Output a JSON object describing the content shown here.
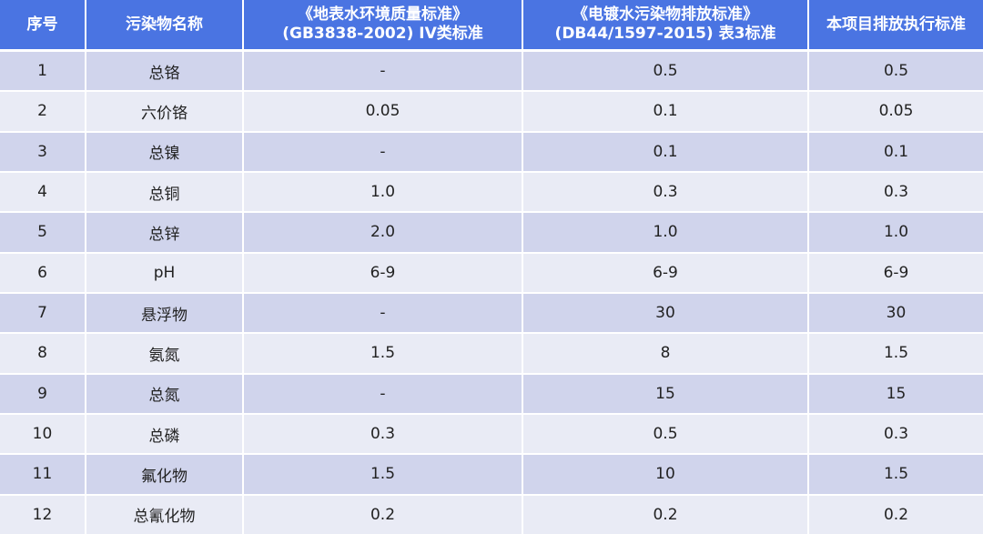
{
  "table": {
    "headers": {
      "col1": "序号",
      "col2": "污染物名称",
      "col3_line1": "《地表水环境质量标准》",
      "col3_line2": "(GB3838-2002) IV类标准",
      "col4_line1": "《电镀水污染物排放标准》",
      "col4_line2": "(DB44/1597-2015) 表3标准",
      "col5": "本项目排放执行标准"
    },
    "rows": [
      {
        "no": "1",
        "name": "总铬",
        "surface": "-",
        "plating": "0.5",
        "project": "0.5"
      },
      {
        "no": "2",
        "name": "六价铬",
        "surface": "0.05",
        "plating": "0.1",
        "project": "0.05"
      },
      {
        "no": "3",
        "name": "总镍",
        "surface": "-",
        "plating": "0.1",
        "project": "0.1"
      },
      {
        "no": "4",
        "name": "总铜",
        "surface": "1.0",
        "plating": "0.3",
        "project": "0.3"
      },
      {
        "no": "5",
        "name": "总锌",
        "surface": "2.0",
        "plating": "1.0",
        "project": "1.0"
      },
      {
        "no": "6",
        "name": "pH",
        "surface": "6-9",
        "plating": "6-9",
        "project": "6-9"
      },
      {
        "no": "7",
        "name": "悬浮物",
        "surface": "-",
        "plating": "30",
        "project": "30"
      },
      {
        "no": "8",
        "name": "氨氮",
        "surface": "1.5",
        "plating": "8",
        "project": "1.5"
      },
      {
        "no": "9",
        "name": "总氮",
        "surface": "-",
        "plating": "15",
        "project": "15"
      },
      {
        "no": "10",
        "name": "总磷",
        "surface": "0.3",
        "plating": "0.5",
        "project": "0.3"
      },
      {
        "no": "11",
        "name": "氟化物",
        "surface": "1.5",
        "plating": "10",
        "project": "1.5"
      },
      {
        "no": "12",
        "name": "总氰化物",
        "surface": "0.2",
        "plating": "0.2",
        "project": "0.2"
      }
    ]
  },
  "colors": {
    "header_bg": "#4a74e2",
    "row_odd_bg": "#d0d4ec",
    "row_even_bg": "#e9ebf5"
  }
}
